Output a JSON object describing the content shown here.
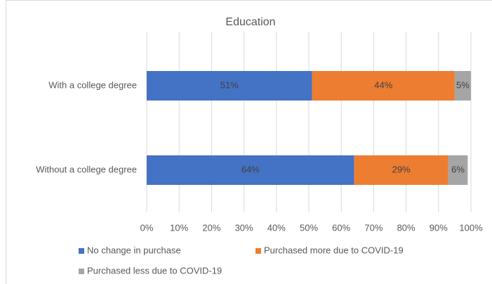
{
  "chart_data": {
    "type": "stacked-bar-horizontal",
    "title": "Education",
    "categories": [
      "With a college degree",
      "Without a college degree"
    ],
    "series": [
      {
        "name": "No change in purchase",
        "color": "#4472c4",
        "values": [
          51,
          64
        ],
        "value_labels": [
          "51%",
          "64%"
        ]
      },
      {
        "name": "Purchased more due to COVID-19",
        "color": "#ed7d31",
        "values": [
          44,
          29
        ],
        "value_labels": [
          "44%",
          "29%"
        ]
      },
      {
        "name": "Purchased less due to COVID-19",
        "color": "#a5a5a5",
        "values": [
          5,
          6
        ],
        "value_labels": [
          "5%",
          "6%"
        ]
      }
    ],
    "xlim": [
      0,
      100
    ],
    "xticks": [
      {
        "value": 0,
        "label": "0%"
      },
      {
        "value": 10,
        "label": "10%"
      },
      {
        "value": 20,
        "label": "20%"
      },
      {
        "value": 30,
        "label": "30%"
      },
      {
        "value": 40,
        "label": "40%"
      },
      {
        "value": 50,
        "label": "50%"
      },
      {
        "value": 60,
        "label": "60%"
      },
      {
        "value": 70,
        "label": "70%"
      },
      {
        "value": 80,
        "label": "80%"
      },
      {
        "value": 90,
        "label": "90%"
      },
      {
        "value": 100,
        "label": "100%"
      }
    ],
    "grid": true,
    "legend": "bottom"
  }
}
